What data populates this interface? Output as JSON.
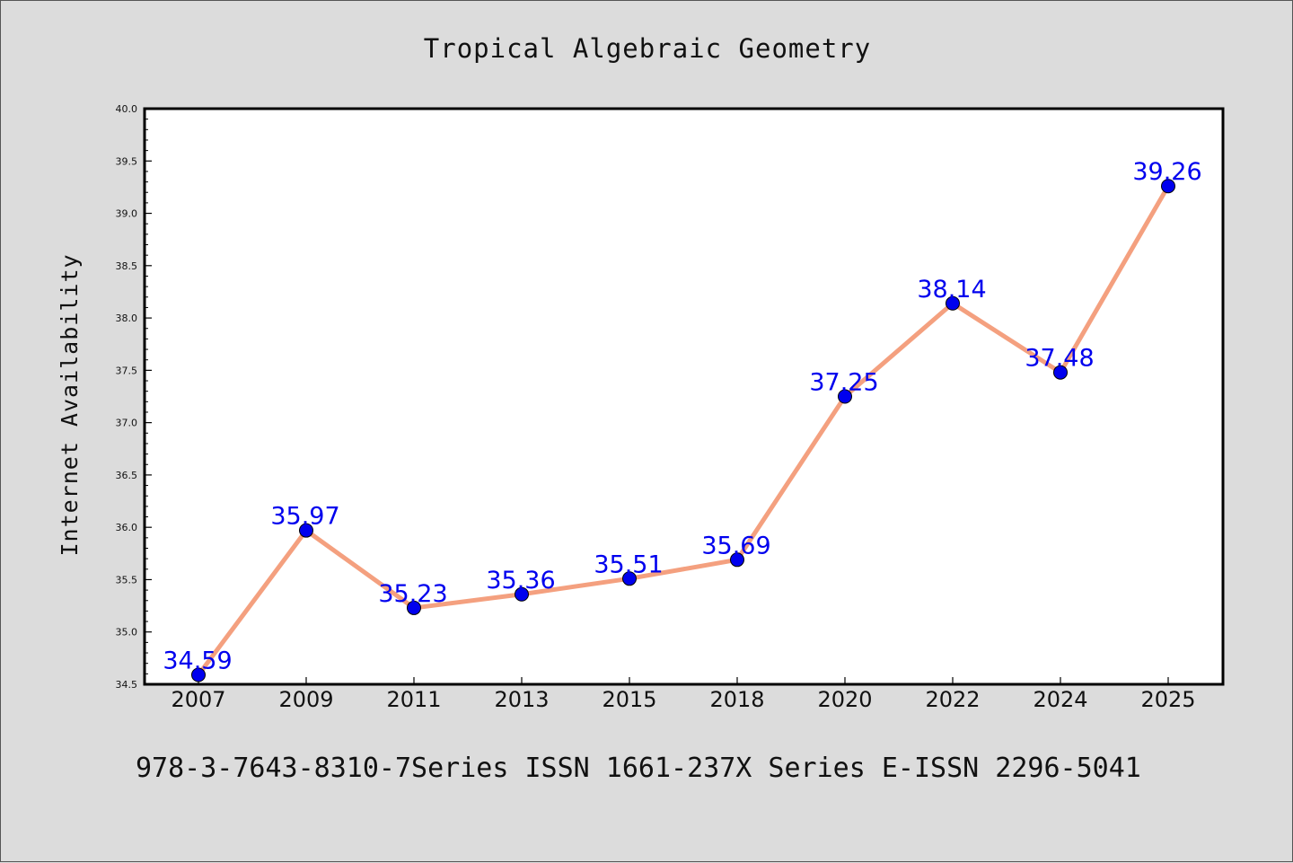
{
  "chart_data": {
    "type": "line",
    "title": "Tropical Algebraic Geometry",
    "ylabel": "Internet Availability",
    "xlabel": "",
    "categories": [
      "2007",
      "2009",
      "2011",
      "2013",
      "2015",
      "2018",
      "2020",
      "2022",
      "2024",
      "2025"
    ],
    "series": [
      {
        "values": [
          34.59,
          35.97,
          35.23,
          35.36,
          35.51,
          35.69,
          37.25,
          38.14,
          37.48,
          39.26
        ],
        "labels": [
          "34.59",
          "35.97",
          "35.23",
          "35.36",
          "35.51",
          "35.69",
          "37.25",
          "38.14",
          "37.48",
          "39.26"
        ]
      }
    ],
    "ylim": [
      34.5,
      40.0
    ],
    "yticks": [
      "34.5",
      "35.0",
      "35.5",
      "36.0",
      "36.5",
      "37.0",
      "37.5",
      "38.0",
      "38.5",
      "39.0",
      "39.5",
      "40.0"
    ],
    "grid": false,
    "legend": "none",
    "colors": {
      "line": "#f4a07f",
      "marker": "#0000ee",
      "label": "#0000ee",
      "background": "#dcdcdc",
      "plot_background": "#ffffff"
    }
  },
  "footer": {
    "text": "978-3-7643-8310-7Series ISSN 1661-237X Series E-ISSN 2296-5041"
  }
}
